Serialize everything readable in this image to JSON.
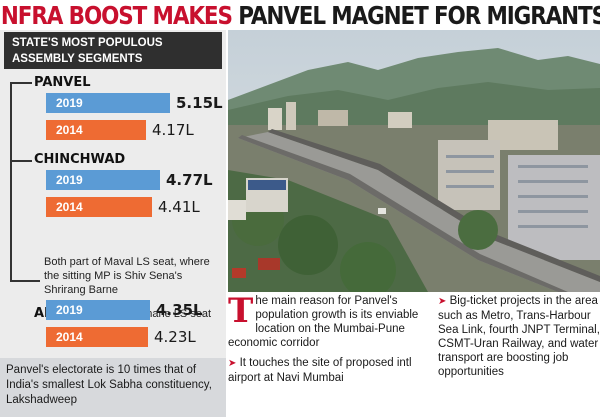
{
  "headline": {
    "red_part": "INFRA BOOST MAKES",
    "dark_part": "PANVEL MAGNET FOR MIGRANTS"
  },
  "left_panel": {
    "header": "STATE'S MOST POPULOUS ASSEMBLY SEGMENTS",
    "segments": [
      {
        "name": "PANVEL",
        "year_a": "2019",
        "value_a": "5.15L",
        "year_b": "2014",
        "value_b": "4.17L"
      },
      {
        "name": "CHINCHWAD",
        "year_a": "2019",
        "value_a": "4.77L",
        "year_b": "2014",
        "value_b": "4.41L"
      },
      {
        "name": "AIROLI",
        "year_a": "2019",
        "value_a": "4.35L",
        "year_b": "2014",
        "value_b": "4.23L"
      }
    ],
    "maval_note": "Both part of Maval LS seat, where the sitting MP is Shiv Sena's Shrirang Barne",
    "airoli_note": "Part of Thane LS seat",
    "footer": "Panvel's electorate is 10 times that of India's smallest Lok Sabha constituency, Lakshadweep"
  },
  "chart_data": {
    "type": "bar",
    "categories": [
      "PANVEL",
      "CHINCHWAD",
      "AIROLI"
    ],
    "series": [
      {
        "name": "2019",
        "values": [
          5.15,
          4.77,
          4.35
        ],
        "color": "#5b9bd5"
      },
      {
        "name": "2014",
        "values": [
          4.17,
          4.41,
          4.23
        ],
        "color": "#ee6b33"
      }
    ],
    "value_labels": {
      "2019": [
        "5.15L",
        "4.77L",
        "4.35L"
      ],
      "2014": [
        "4.17L",
        "4.41L",
        "4.23L"
      ]
    }
  },
  "bottom": {
    "dropcap": "T",
    "para1": "he main reason for Panvel's population growth is its enviable location on the Mumbai-Pune economic corridor",
    "para2": "It touches the site of proposed intl airport at Navi Mumbai",
    "para3": "Big-ticket projects in the area such as Metro, Trans-Harbour Sea Link, fourth JNPT Terminal, CSMT-Uran Railway, and water transport are boosting job opportunities"
  },
  "colors": {
    "accent_red": "#c8102e",
    "bar_2019": "#5b9bd5",
    "bar_2014": "#ee6b33",
    "header_bg": "#2f2f2f"
  }
}
